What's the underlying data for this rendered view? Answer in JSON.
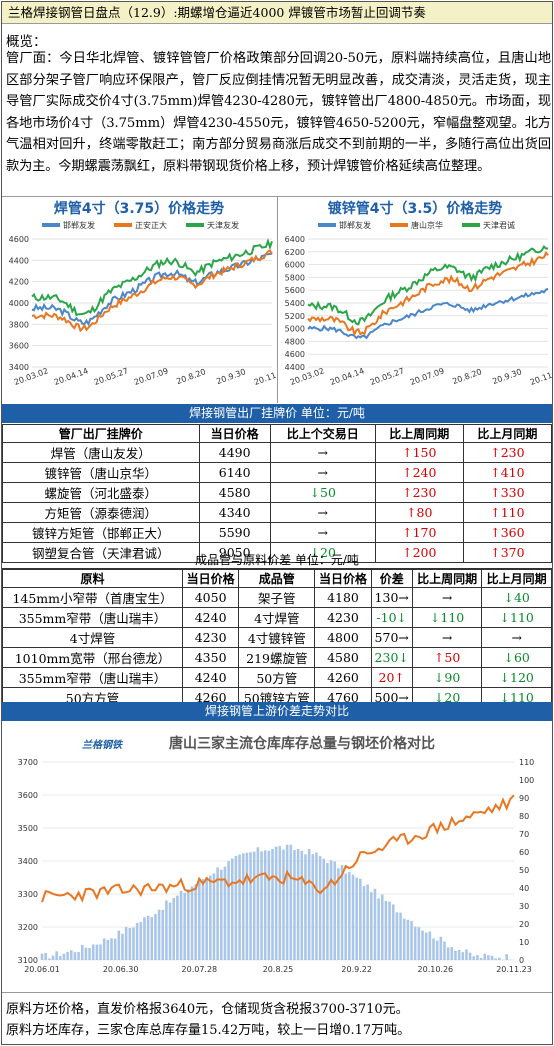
{
  "title": "兰格焊接钢管日盘点（12.9）:期螺增仓逼近4000 焊镀管市场暂止回调节奏",
  "overview_label": "概览：",
  "overview": "管厂面：今日华北焊管、镀锌管管厂价格政策部分回调20-50元，原料端持续高位，且唐山地区部分架子管厂响应环保限产，管厂反应倒挂情况暂无明显改善，成交清淡，灵活走货，现主导管厂实际成交价4寸(3.75mm)焊管4230-4280元，镀锌管出厂4800-4850元。市场面，现各地市场价4寸（3.75mm）焊管4230-4550元，镀锌管4650-5200元，窄幅盘整观望。北方气温相对回升，终端零散赶工；南方部分贸易商涨后成交不到前期的一半，多随行高位出货回款为主。今期螺震荡飘红，原料带钢现货价格上移，预计焊镀管价格延续高位整理。",
  "chart1": {
    "title": "焊管4寸（3.75）价格走势",
    "legend": [
      "邯郸友发",
      "正安正大",
      "天津友发"
    ],
    "colors": [
      "#4a86c8",
      "#e87722",
      "#2ca54a"
    ],
    "yticks": [
      "4600",
      "4400",
      "4200",
      "4000",
      "3800",
      "3600",
      "3400"
    ],
    "xticks": [
      "20.03.02",
      "20.04.14",
      "20.05.27",
      "20.07.09",
      "20.8.20",
      "20.9.30",
      "20.11.18"
    ]
  },
  "chart2": {
    "title": "镀锌管4寸（3.5）价格走势",
    "legend": [
      "邯郸友发",
      "唐山京华",
      "天津君诚"
    ],
    "colors": [
      "#4a86c8",
      "#e87722",
      "#2ca54a"
    ],
    "yticks": [
      "6400",
      "6200",
      "6000",
      "5800",
      "5600",
      "5400",
      "5200",
      "5000",
      "4800",
      "4600",
      "4400"
    ],
    "xticks": [
      "20.03.02",
      "20.04.14",
      "20.05.27",
      "20.07.09",
      "20.8.20",
      "20.9.30",
      "20.11.18"
    ]
  },
  "table1": {
    "bar": "焊接钢管出厂挂牌价     单位：元/吨",
    "headers": [
      "管厂出厂挂牌价",
      "当日价格",
      "比上个交易日",
      "比上周同期",
      "比上月同期"
    ],
    "rows": [
      [
        "焊管（唐山友发）",
        "4490",
        "→",
        "↑150",
        "↑230"
      ],
      [
        "镀锌管（唐山京华）",
        "6140",
        "→",
        "↑240",
        "↑410"
      ],
      [
        "螺旋管（河北盛泰）",
        "4580",
        "↓50",
        "↑230",
        "↑330"
      ],
      [
        "方矩管（源泰德润）",
        "4340",
        "→",
        "↑80",
        "↑110"
      ],
      [
        "镀锌方矩管（邯郸正大）",
        "5590",
        "→",
        "↑170",
        "↑360"
      ],
      [
        "钢塑复合管（天津君诚）",
        "9050",
        "↓20",
        "↑200",
        "↑370"
      ]
    ]
  },
  "table2": {
    "bar": "成品管与原料价差     单位：元/吨",
    "headers": [
      "原料",
      "当日价格",
      "成品管",
      "当日价格",
      "价差",
      "比上周同期",
      "比上月同期"
    ],
    "rows": [
      [
        "145mm小窄带（首唐宝生）",
        "4050",
        "架子管",
        "4180",
        "130→",
        "→",
        "↓40"
      ],
      [
        "355mm窄带（唐山瑞丰）",
        "4240",
        "4寸焊管",
        "4230",
        "-10↓",
        "↓110",
        "↓110"
      ],
      [
        "4寸焊管",
        "4230",
        "4寸镀锌管",
        "4800",
        "570→",
        "→",
        "→"
      ],
      [
        "1010mm宽带（邢台德龙）",
        "4350",
        "219螺旋管",
        "4580",
        "230↓",
        "↑50",
        "↓60"
      ],
      [
        "355mm窄带（唐山瑞丰）",
        "4240",
        "50方管",
        "4260",
        "20↑",
        "↓90",
        "↓120"
      ],
      [
        "50方方管",
        "4260",
        "50镀锌方管",
        "4760",
        "500→",
        "↓20",
        "↓110"
      ]
    ]
  },
  "chart3": {
    "bar": "焊接钢管上游价差走势对比",
    "brand": "兰格钢铁",
    "title": "唐山三家主流仓库库存总量与钢坯价格对比",
    "yleft": [
      "3700",
      "3600",
      "3500",
      "3400",
      "3300",
      "3200",
      "3100"
    ],
    "yright": [
      "110",
      "100",
      "90",
      "80",
      "70",
      "60",
      "50",
      "40",
      "30",
      "20",
      "10",
      "0"
    ],
    "xticks": [
      "20.06.01",
      "20.06.30",
      "20.07.28",
      "20.8.25",
      "20.9.22",
      "20.10.26",
      "20.11.23"
    ],
    "colors": [
      "#e87722",
      "#a9c6e8"
    ]
  },
  "footer": [
    "原料方坯价格，直发价格报3640元，仓储现货含税报3700-3710元。",
    "原料方坯库存，三家仓库总库存量15.42万吨，较上一日增0.17万吨。"
  ]
}
